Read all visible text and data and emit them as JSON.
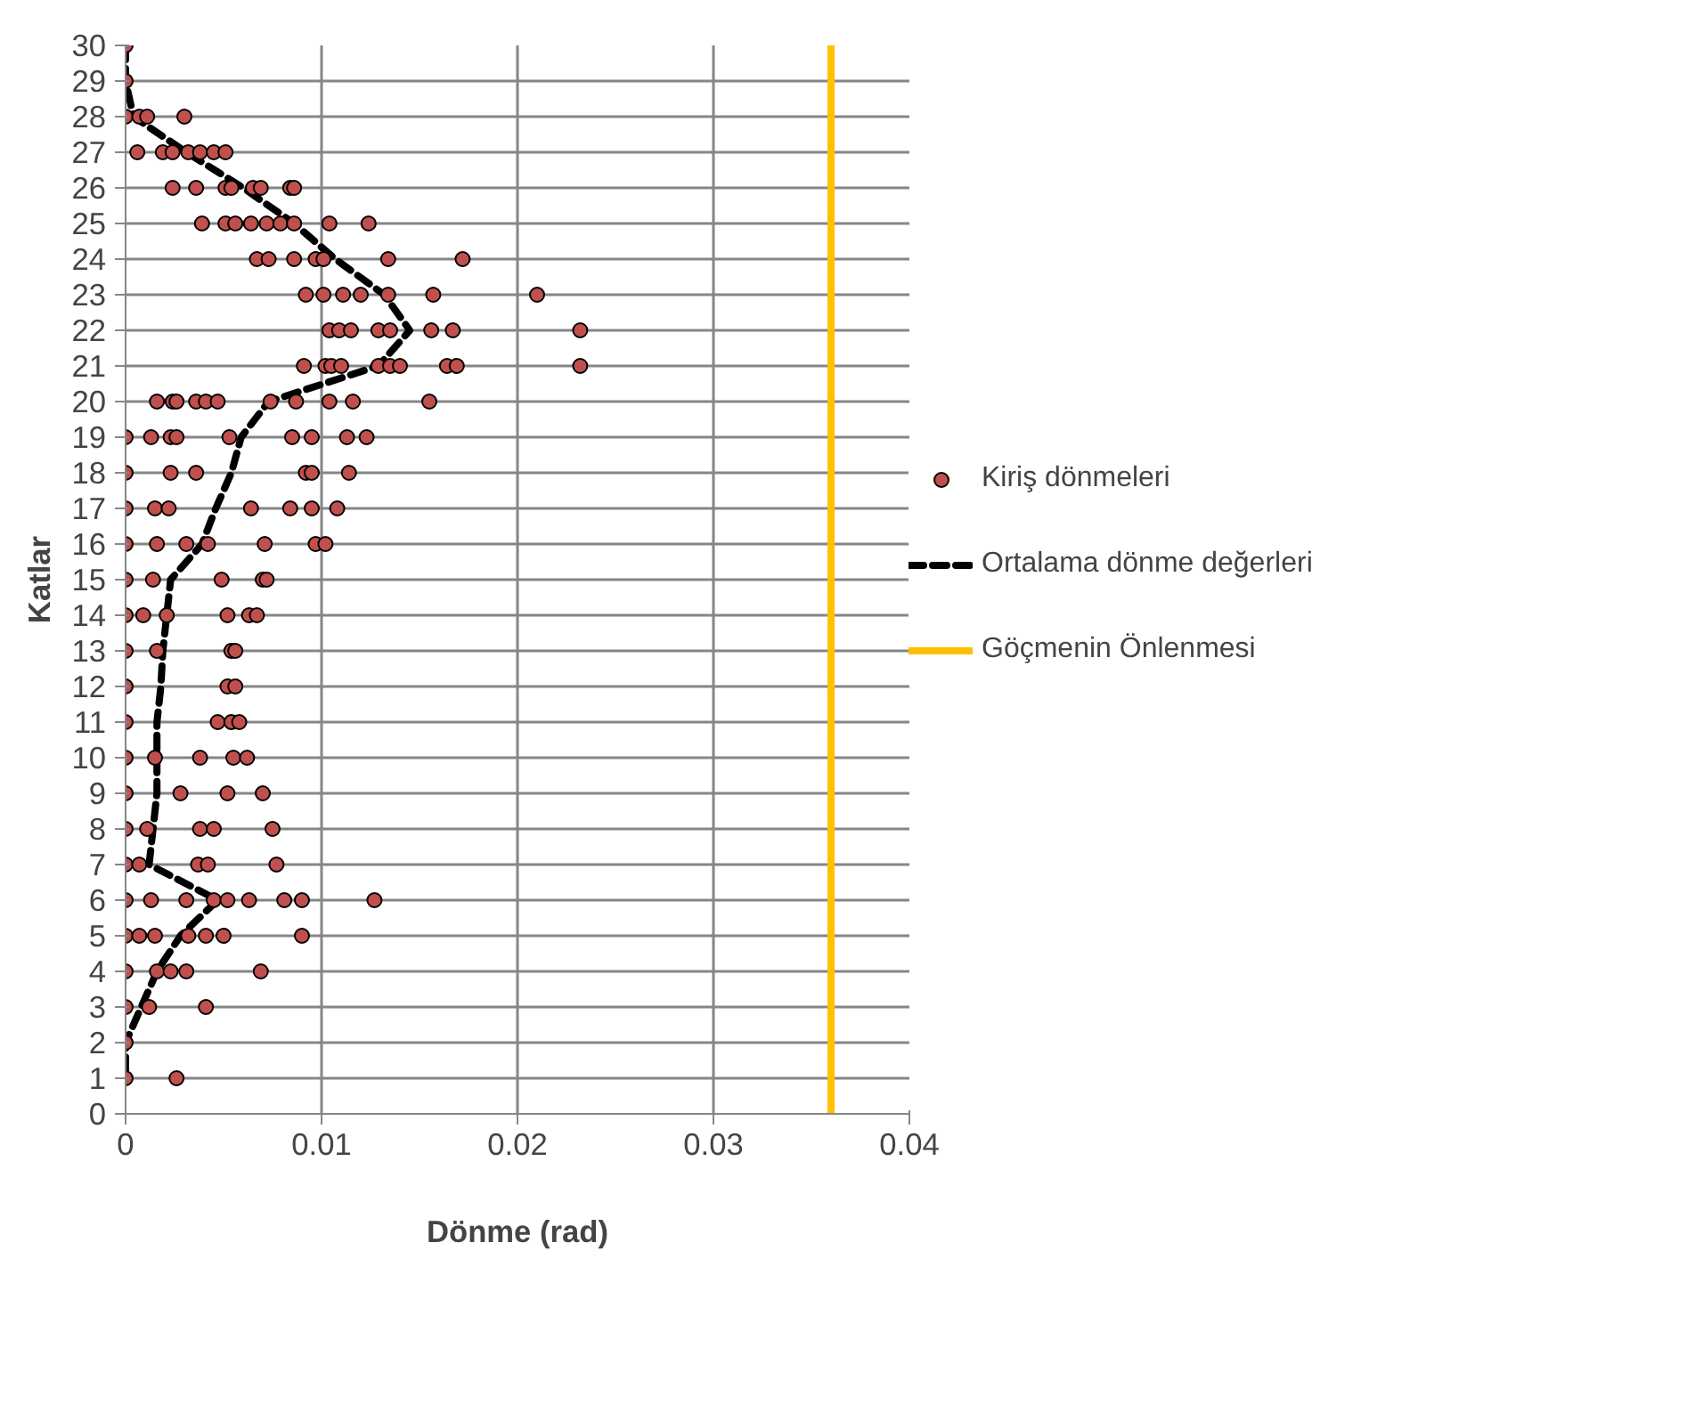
{
  "chart_data": {
    "type": "scatter",
    "xlabel": "Dönme (rad)",
    "ylabel": "Katlar",
    "xlim": [
      0,
      0.04
    ],
    "xticks": [
      0,
      0.01,
      0.02,
      0.03,
      0.04
    ],
    "ylim": [
      0,
      30
    ],
    "yticks": [
      0,
      1,
      2,
      3,
      4,
      5,
      6,
      7,
      8,
      9,
      10,
      11,
      12,
      13,
      14,
      15,
      16,
      17,
      18,
      19,
      20,
      21,
      22,
      23,
      24,
      25,
      26,
      27,
      28,
      29,
      30
    ],
    "grid": true,
    "legend": "right",
    "series": [
      {
        "name": "Kiriş dönmeleri",
        "marker": "circle",
        "color": "#c0504d",
        "x": [
          0,
          0,
          0,
          0.0007,
          0.0011,
          0.003,
          0.0006,
          0.0019,
          0.0024,
          0.0032,
          0.0038,
          0.0045,
          0.0051,
          0.0024,
          0.0036,
          0.0051,
          0.0054,
          0.0065,
          0.0069,
          0.0084,
          0.0086,
          0.0039,
          0.0051,
          0.0056,
          0.0064,
          0.0072,
          0.0079,
          0.0086,
          0.0104,
          0.0124,
          0.0067,
          0.0073,
          0.0086,
          0.0097,
          0.0101,
          0.0134,
          0.0172,
          0.0092,
          0.0101,
          0.0111,
          0.012,
          0.0134,
          0.0157,
          0.021,
          0.0104,
          0.0109,
          0.0115,
          0.0129,
          0.0135,
          0.0156,
          0.0167,
          0.0232,
          0.0091,
          0.0102,
          0.0105,
          0.011,
          0.0129,
          0.0135,
          0.014,
          0.0164,
          0.0169,
          0.0232,
          0.0016,
          0.0024,
          0.0026,
          0.0036,
          0.0041,
          0.0047,
          0.0074,
          0.0087,
          0.0104,
          0.0116,
          0.0155,
          0,
          0.0013,
          0.0023,
          0.0026,
          0.0053,
          0.0085,
          0.0095,
          0.0113,
          0.0123,
          0,
          0.0023,
          0.0036,
          0.0092,
          0.0095,
          0.0114,
          0,
          0.0015,
          0.0022,
          0.0064,
          0.0084,
          0.0095,
          0.0108,
          0,
          0.0016,
          0.0031,
          0.0042,
          0.0071,
          0.0097,
          0.0102,
          0,
          0.0014,
          0.0049,
          0.007,
          0.0072,
          0,
          0.0009,
          0.0021,
          0.0052,
          0.0063,
          0.0067,
          0,
          0.0016,
          0.0054,
          0.0056,
          0,
          0.0052,
          0.0056,
          0,
          0.0047,
          0.0054,
          0.0058,
          0,
          0.0015,
          0.0038,
          0.0055,
          0.0062,
          0,
          0.0028,
          0.0052,
          0.007,
          0,
          0.0011,
          0.0038,
          0.0045,
          0.0075,
          0,
          0.0007,
          0.0037,
          0.0042,
          0.0077,
          0,
          0.0013,
          0.0031,
          0.0045,
          0.0052,
          0.0063,
          0.0081,
          0.009,
          0.0127,
          0,
          0.0007,
          0.0015,
          0.0032,
          0.0041,
          0.005,
          0.009,
          0,
          0.0016,
          0.0023,
          0.0031,
          0.0069,
          0,
          0.0012,
          0.0041,
          0,
          0,
          0.0026
        ],
        "values": [
          30,
          29,
          28,
          28,
          28,
          28,
          27,
          27,
          27,
          27,
          27,
          27,
          27,
          26,
          26,
          26,
          26,
          26,
          26,
          26,
          26,
          25,
          25,
          25,
          25,
          25,
          25,
          25,
          25,
          25,
          24,
          24,
          24,
          24,
          24,
          24,
          24,
          23,
          23,
          23,
          23,
          23,
          23,
          23,
          22,
          22,
          22,
          22,
          22,
          22,
          22,
          22,
          21,
          21,
          21,
          21,
          21,
          21,
          21,
          21,
          21,
          21,
          20,
          20,
          20,
          20,
          20,
          20,
          20,
          20,
          20,
          20,
          20,
          19,
          19,
          19,
          19,
          19,
          19,
          19,
          19,
          19,
          18,
          18,
          18,
          18,
          18,
          18,
          17,
          17,
          17,
          17,
          17,
          17,
          17,
          16,
          16,
          16,
          16,
          16,
          16,
          16,
          15,
          15,
          15,
          15,
          15,
          14,
          14,
          14,
          14,
          14,
          14,
          13,
          13,
          13,
          13,
          12,
          12,
          12,
          11,
          11,
          11,
          11,
          10,
          10,
          10,
          10,
          10,
          9,
          9,
          9,
          9,
          8,
          8,
          8,
          8,
          8,
          7,
          7,
          7,
          7,
          7,
          6,
          6,
          6,
          6,
          6,
          6,
          6,
          6,
          6,
          5,
          5,
          5,
          5,
          5,
          5,
          5,
          4,
          4,
          4,
          4,
          4,
          3,
          3,
          3,
          2,
          1,
          1
        ]
      },
      {
        "name": "Ortalama dönme değerleri",
        "type": "line",
        "line_style": "dashed",
        "color": "#000000",
        "x": [
          0,
          0,
          0.0004,
          0.0031,
          0.006,
          0.0086,
          0.0107,
          0.0132,
          0.0145,
          0.0129,
          0.0073,
          0.0059,
          0.0054,
          0.0046,
          0.0039,
          0.0023,
          0.0021,
          0.0019,
          0.0018,
          0.0016,
          0.0016,
          0.0016,
          0.0014,
          0.0012,
          0.0047,
          0.0028,
          0.0016,
          0.0008,
          0,
          0
        ],
        "values": [
          30,
          29,
          28,
          27,
          26,
          25,
          24,
          23,
          22,
          21,
          20,
          19,
          18,
          17,
          16,
          15,
          14,
          13,
          12,
          11,
          10,
          9,
          8,
          7,
          6,
          5,
          4,
          3,
          2,
          1
        ]
      },
      {
        "name": "Göçmenin Önlenmesi",
        "type": "line",
        "line_style": "solid",
        "color": "#ffc000",
        "x": [
          0.036,
          0.036
        ],
        "values": [
          0,
          30
        ]
      }
    ]
  }
}
